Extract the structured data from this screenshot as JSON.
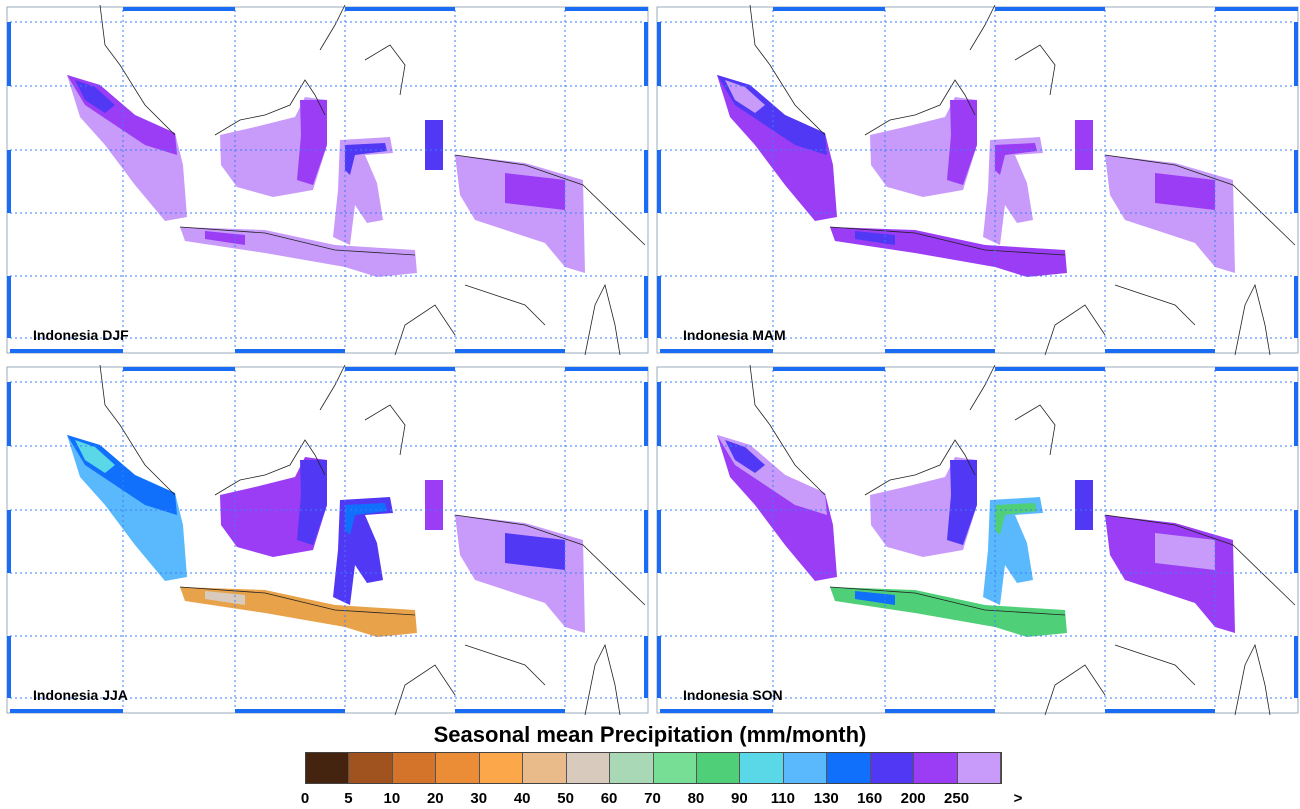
{
  "panels": [
    {
      "label": "Indonesia DJF",
      "colors": {
        "sumatra": "#c89bfa",
        "sumatra_accent": "#9a3df5",
        "sumatra_accent2": "#5038f5",
        "borneo": "#c89bfa",
        "borneo_accent": "#9a3df5",
        "sulawesi": "#c89bfa",
        "sulawesi_accent": "#5038f5",
        "java": "#c89bfa",
        "java_accent": "#9a3df5",
        "moluccas": "#5038f5",
        "papua": "#c89bfa",
        "papua_accent": "#9a3df5"
      }
    },
    {
      "label": "Indonesia MAM",
      "colors": {
        "sumatra": "#9a3df5",
        "sumatra_accent": "#5038f5",
        "sumatra_accent2": "#c89bfa",
        "borneo": "#c89bfa",
        "borneo_accent": "#9a3df5",
        "sulawesi": "#c89bfa",
        "sulawesi_accent": "#9a3df5",
        "java": "#9a3df5",
        "java_accent": "#5038f5",
        "moluccas": "#9a3df5",
        "papua": "#c89bfa",
        "papua_accent": "#9a3df5"
      }
    },
    {
      "label": "Indonesia JJA",
      "colors": {
        "sumatra": "#5ab9fd",
        "sumatra_accent": "#1070fc",
        "sumatra_accent2": "#5ad8e8",
        "borneo": "#9a3df5",
        "borneo_accent": "#5038f5",
        "sulawesi": "#5038f5",
        "sulawesi_accent": "#1070fc",
        "java": "#e8a24a",
        "java_accent": "#d8cabd",
        "moluccas": "#9a3df5",
        "papua": "#c89bfa",
        "papua_accent": "#5038f5"
      }
    },
    {
      "label": "Indonesia SON",
      "colors": {
        "sumatra": "#9a3df5",
        "sumatra_accent": "#c89bfa",
        "sumatra_accent2": "#5038f5",
        "borneo": "#c89bfa",
        "borneo_accent": "#5038f5",
        "sulawesi": "#5ab9fd",
        "sulawesi_accent": "#4fcf78",
        "java": "#4fcf78",
        "java_accent": "#1070fc",
        "moluccas": "#5038f5",
        "papua": "#9a3df5",
        "papua_accent": "#c89bfa"
      }
    }
  ],
  "colorbar": {
    "title": "Seasonal mean Precipitation (mm/month)",
    "colors": [
      "#44240f",
      "#a0531f",
      "#d4742a",
      "#ea8d36",
      "#fca74a",
      "#eabb8a",
      "#d8cabd",
      "#a8d8b5",
      "#76de95",
      "#4fcf78",
      "#5ad8e8",
      "#5ab9fd",
      "#1070fc",
      "#5038f5",
      "#9a3df5",
      "#c89bfa"
    ],
    "labels": [
      "0",
      "5",
      "10",
      "20",
      "30",
      "40",
      "50",
      "60",
      "70",
      "80",
      "90",
      "110",
      "130",
      "160",
      "200",
      "250",
      ">"
    ]
  }
}
